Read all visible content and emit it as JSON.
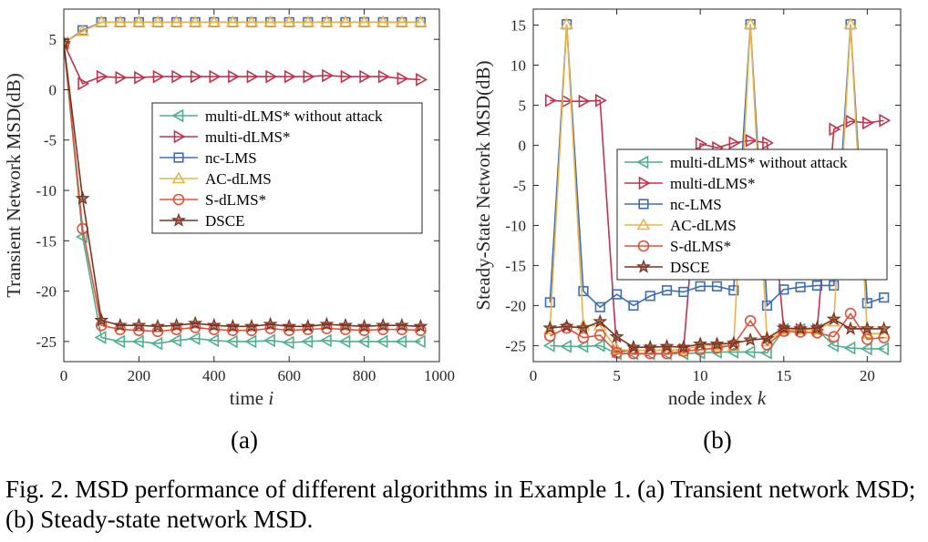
{
  "caption": "Fig. 2.  MSD performance of different algorithms in Example 1. (a) Transient network MSD; (b) Steady-state network MSD.",
  "colors": {
    "multi-dLMS* without attack": "#4fae8e",
    "multi-dLMS*": "#c0334d",
    "nc-LMS": "#3d6db5",
    "AC-dLMS": "#e8b34a",
    "S-dLMS*": "#e0523a",
    "DSCE": "#7a3420"
  },
  "chart_data": [
    {
      "type": "line",
      "panel_label": "(a)",
      "xlabel_text": "time ",
      "xlabel_var": "i",
      "ylabel": "Transient Network MSD(dB)",
      "xlim": [
        0,
        1000
      ],
      "ylim": [
        -27,
        8
      ],
      "xticks": [
        0,
        200,
        400,
        600,
        800,
        1000
      ],
      "yticks": [
        5,
        0,
        -5,
        -10,
        -15,
        -20,
        -25
      ],
      "grid": false,
      "legend_position": "center-right",
      "x": [
        0,
        50,
        100,
        150,
        200,
        250,
        300,
        350,
        400,
        450,
        500,
        550,
        600,
        650,
        700,
        750,
        800,
        850,
        900,
        950
      ],
      "series": [
        {
          "name": "multi-dLMS* without attack",
          "marker": "triangle-left",
          "values": [
            4.6,
            -14.6,
            -24.6,
            -25.0,
            -25.0,
            -25.2,
            -24.9,
            -24.7,
            -24.9,
            -25.0,
            -25.0,
            -24.9,
            -25.1,
            -25.0,
            -24.9,
            -25.0,
            -25.0,
            -25.0,
            -25.0,
            -25.0
          ]
        },
        {
          "name": "multi-dLMS*",
          "marker": "triangle-right",
          "values": [
            4.6,
            0.6,
            1.3,
            1.2,
            1.2,
            1.3,
            1.3,
            1.3,
            1.3,
            1.3,
            1.3,
            1.3,
            1.3,
            1.3,
            1.4,
            1.3,
            1.3,
            1.3,
            1.1,
            1.0
          ]
        },
        {
          "name": "nc-LMS",
          "marker": "square",
          "values": [
            4.6,
            5.9,
            6.7,
            6.7,
            6.7,
            6.7,
            6.7,
            6.7,
            6.7,
            6.7,
            6.7,
            6.7,
            6.7,
            6.7,
            6.7,
            6.7,
            6.7,
            6.7,
            6.7,
            6.7
          ]
        },
        {
          "name": "AC-dLMS",
          "marker": "triangle-up",
          "values": [
            4.6,
            5.8,
            6.7,
            6.7,
            6.7,
            6.7,
            6.7,
            6.7,
            6.7,
            6.7,
            6.7,
            6.7,
            6.7,
            6.7,
            6.7,
            6.7,
            6.7,
            6.7,
            6.7,
            6.7
          ]
        },
        {
          "name": "S-dLMS*",
          "marker": "circle",
          "values": [
            4.6,
            -13.8,
            -23.4,
            -23.8,
            -23.9,
            -24.0,
            -23.8,
            -23.6,
            -23.8,
            -23.9,
            -23.9,
            -23.7,
            -23.9,
            -23.8,
            -23.7,
            -23.8,
            -23.9,
            -23.8,
            -23.8,
            -23.9
          ]
        },
        {
          "name": "DSCE",
          "marker": "star",
          "values": [
            4.6,
            -10.8,
            -22.9,
            -23.4,
            -23.4,
            -23.5,
            -23.4,
            -23.2,
            -23.4,
            -23.5,
            -23.5,
            -23.3,
            -23.5,
            -23.5,
            -23.3,
            -23.4,
            -23.5,
            -23.4,
            -23.4,
            -23.5
          ]
        }
      ]
    },
    {
      "type": "line",
      "panel_label": "(b)",
      "xlabel_text": "node index ",
      "xlabel_var": "k",
      "ylabel": "Steady-State Network MSD(dB)",
      "xlim": [
        0,
        22
      ],
      "ylim": [
        -27,
        17
      ],
      "xticks": [
        0,
        5,
        10,
        15,
        20
      ],
      "yticks": [
        15,
        10,
        5,
        0,
        -5,
        -10,
        -15,
        -20,
        -25
      ],
      "grid": false,
      "legend_position": "center-right",
      "x": [
        1,
        2,
        3,
        4,
        5,
        6,
        7,
        8,
        9,
        10,
        11,
        12,
        13,
        14,
        15,
        16,
        17,
        18,
        19,
        20,
        21
      ],
      "series": [
        {
          "name": "multi-dLMS* without attack",
          "marker": "triangle-left",
          "values": [
            -25.0,
            -25.1,
            -25.1,
            -25.0,
            -26.0,
            -26.0,
            -26.0,
            -26.0,
            -26.0,
            -25.9,
            -25.8,
            -25.8,
            -25.8,
            -25.9,
            -23.0,
            -23.0,
            -23.0,
            -25.0,
            -25.3,
            -25.4,
            -25.4
          ]
        },
        {
          "name": "multi-dLMS*",
          "marker": "triangle-right",
          "values": [
            5.6,
            5.5,
            5.5,
            5.6,
            -25.7,
            -25.6,
            -25.6,
            -25.6,
            -25.5,
            0.2,
            -0.3,
            0.3,
            0.6,
            0.3,
            -23.0,
            -23.0,
            -23.0,
            2.0,
            3.0,
            2.8,
            3.1
          ]
        },
        {
          "name": "nc-LMS",
          "marker": "square",
          "values": [
            -19.6,
            15.1,
            -18.2,
            -20.2,
            -18.6,
            -20.0,
            -18.8,
            -18.1,
            -18.3,
            -17.6,
            -17.6,
            -18.1,
            15.1,
            -20.0,
            -18.0,
            -17.7,
            -17.5,
            -17.5,
            15.1,
            -19.7,
            -19.0
          ]
        },
        {
          "name": "AC-dLMS",
          "marker": "triangle-up",
          "values": [
            -23.0,
            15.1,
            -22.5,
            -22.5,
            -25.5,
            -25.6,
            -25.6,
            -25.6,
            -25.5,
            -25.0,
            -25.0,
            -25.0,
            15.1,
            -24.5,
            -23.0,
            -23.0,
            -23.0,
            -22.0,
            15.1,
            -23.5,
            -23.5
          ]
        },
        {
          "name": "S-dLMS*",
          "marker": "circle",
          "values": [
            -23.8,
            -22.8,
            -24.0,
            -23.7,
            -25.9,
            -26.0,
            -26.0,
            -26.0,
            -25.7,
            -25.5,
            -25.3,
            -24.9,
            -21.9,
            -24.9,
            -23.2,
            -23.3,
            -23.4,
            -23.9,
            -21.0,
            -24.2,
            -24.0
          ]
        },
        {
          "name": "DSCE",
          "marker": "star",
          "values": [
            -22.8,
            -22.6,
            -22.8,
            -22.0,
            -23.9,
            -25.2,
            -25.2,
            -25.1,
            -25.2,
            -24.8,
            -24.8,
            -24.7,
            -24.3,
            -24.1,
            -22.8,
            -22.9,
            -22.8,
            -21.7,
            -22.9,
            -22.9,
            -22.9
          ]
        }
      ]
    }
  ]
}
